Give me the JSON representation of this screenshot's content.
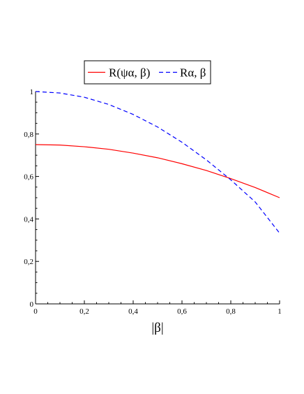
{
  "chart_data": {
    "type": "line",
    "title": "",
    "xlabel": "|β|",
    "ylabel": "",
    "xlim": [
      0,
      1
    ],
    "ylim": [
      0,
      1
    ],
    "grid": false,
    "legend_placement": "top-center",
    "x_ticks": [
      "0",
      "0,2",
      "0,4",
      "0,6",
      "0,8",
      "1"
    ],
    "y_ticks": [
      "0",
      "0,2",
      "0,4",
      "0,6",
      "0,8",
      "1"
    ],
    "x": [
      0,
      0.1,
      0.2,
      0.3,
      0.4,
      0.5,
      0.6,
      0.7,
      0.8,
      0.9,
      1.0
    ],
    "series": [
      {
        "name": "R(ψα, β)",
        "color": "#ff0000",
        "style": "solid",
        "values": [
          0.75,
          0.748,
          0.74,
          0.728,
          0.71,
          0.688,
          0.66,
          0.628,
          0.59,
          0.548,
          0.5
        ]
      },
      {
        "name": "Rα, β",
        "color": "#0000ff",
        "style": "dashed",
        "values": [
          1.0,
          0.993,
          0.973,
          0.939,
          0.892,
          0.833,
          0.761,
          0.678,
          0.584,
          0.48,
          0.333
        ]
      }
    ]
  }
}
